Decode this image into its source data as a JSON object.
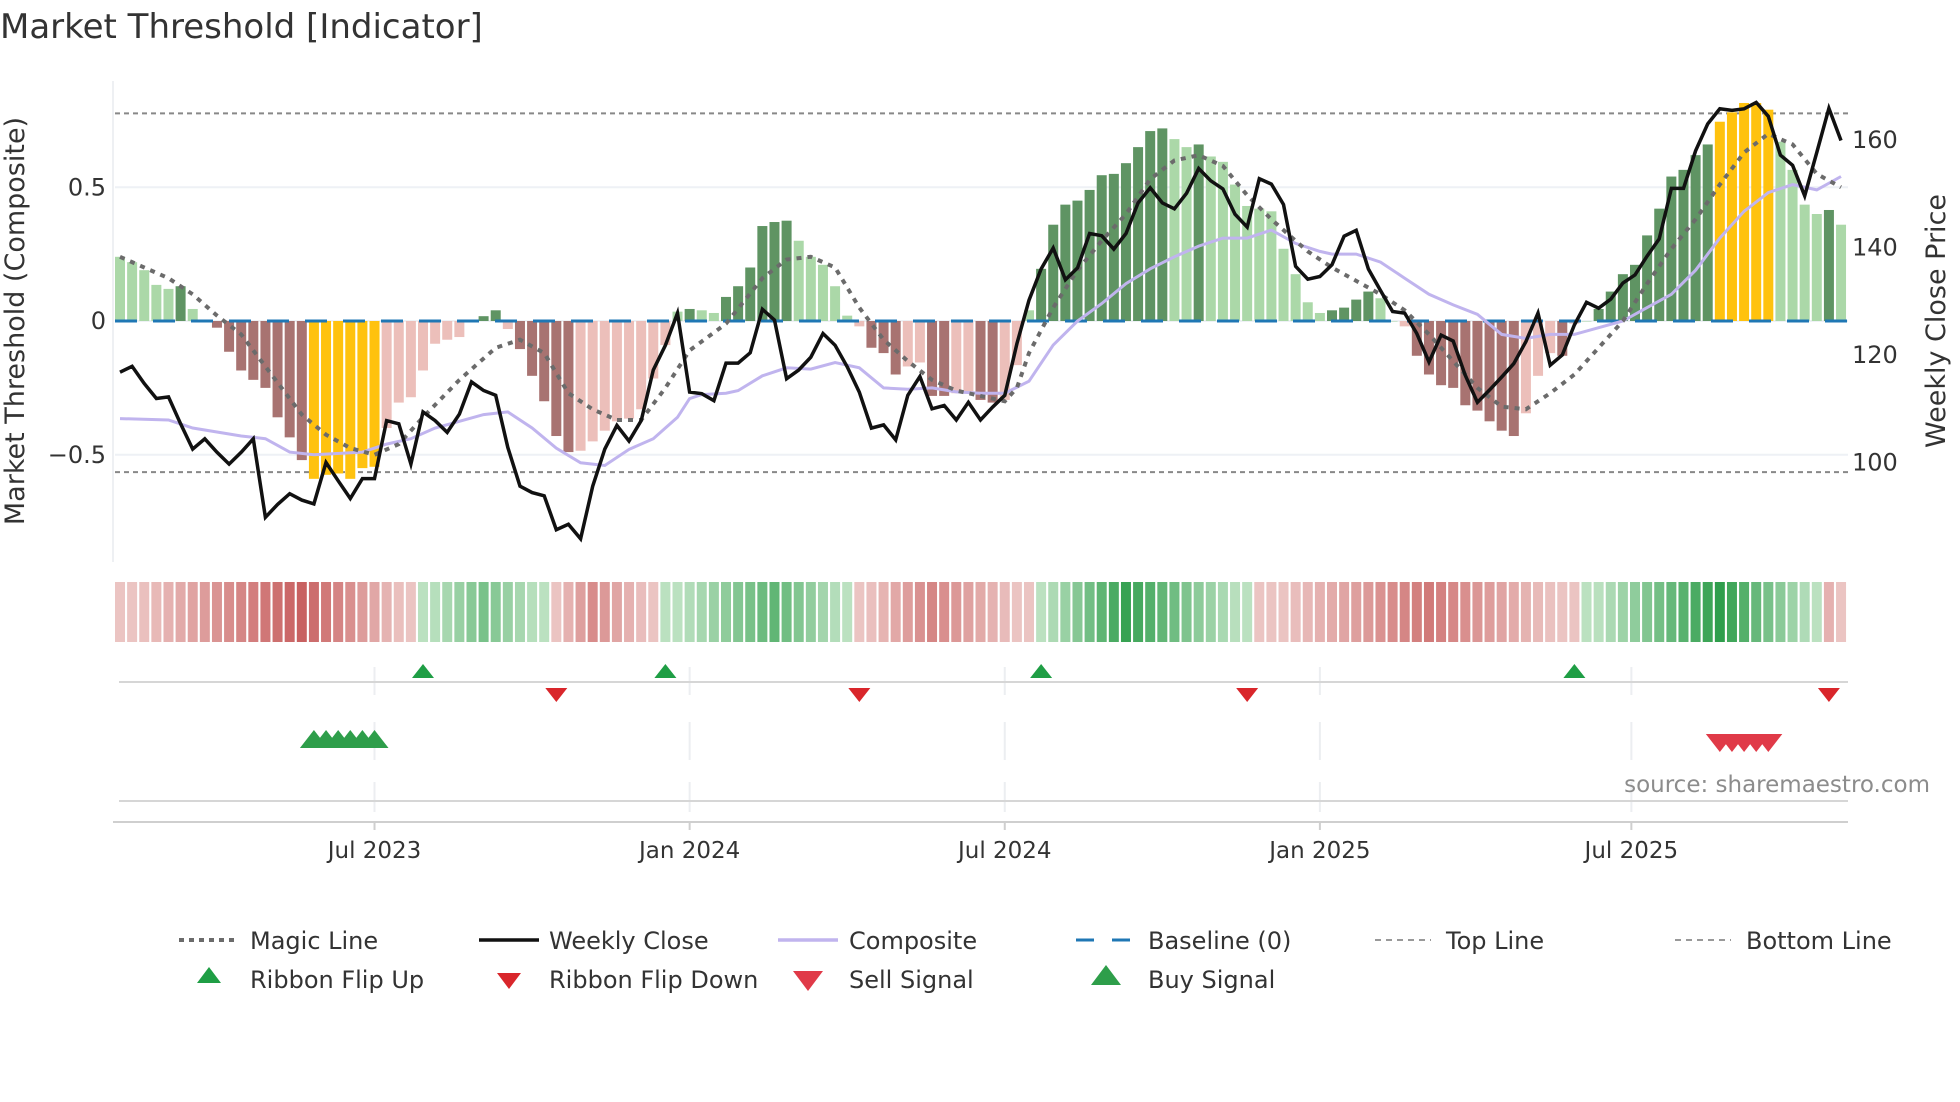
{
  "title": "Market Threshold [Indicator]",
  "source": "source: sharemaestro.com",
  "colors": {
    "dark_green": "#5f9463",
    "light_green": "#abd8a8",
    "dark_red": "#a87371",
    "light_red": "#ecbfba",
    "yellow": "#ffc20e",
    "close": "#111111",
    "composite": "#c0b4ee",
    "magic": "#6b6b6b",
    "baseline": "#1f77b4",
    "threshold": "#888888",
    "flip_up": "#1f9e45",
    "flip_down": "#d9262b",
    "buy": "#2e9e4a",
    "sell": "#e03a48",
    "ribbon_green_dark": "#2f9e4c",
    "ribbon_green_light": "#d4edd5",
    "ribbon_red_dark": "#c65b5b",
    "ribbon_red_light": "#f2d6d4"
  },
  "chart_data": {
    "type": "bar+line",
    "title": "Market Threshold [Indicator]",
    "ylabel_left": "Market Threshold (Composite)",
    "ylabel_right": "Weekly Close Price",
    "ylim_left": [
      -0.9,
      0.92
    ],
    "ylim_right": [
      80,
      180
    ],
    "yticks_left": [
      {
        "v": 0.5,
        "label": "0.5"
      },
      {
        "v": 0,
        "label": "0"
      },
      {
        "v": -0.5,
        "label": "−0.5"
      }
    ],
    "yticks_right": [
      {
        "v": 100,
        "label": "100"
      },
      {
        "v": 120,
        "label": "120"
      },
      {
        "v": 140,
        "label": "140"
      },
      {
        "v": 160,
        "label": "160"
      }
    ],
    "xticks": [
      {
        "week": 21,
        "label": "Jul 2023"
      },
      {
        "week": 47,
        "label": "Jan 2024"
      },
      {
        "week": 73,
        "label": "Jul 2024"
      },
      {
        "week": 99,
        "label": "Jan 2025"
      },
      {
        "week": 124.7,
        "label": "Jul 2025"
      }
    ],
    "top_line": 0.776,
    "bottom_line": -0.565,
    "baseline": 0,
    "composite_bars": [
      0.24,
      0.22,
      0.19,
      0.135,
      0.12,
      0.13,
      0.045,
      0,
      -0.025,
      -0.115,
      -0.185,
      -0.22,
      -0.25,
      -0.36,
      -0.435,
      -0.52,
      -0.59,
      -0.575,
      -0.57,
      -0.59,
      -0.55,
      -0.545,
      -0.4,
      -0.305,
      -0.285,
      -0.185,
      -0.085,
      -0.07,
      -0.06,
      0,
      0.018,
      0.04,
      -0.03,
      -0.105,
      -0.205,
      -0.3,
      -0.43,
      -0.49,
      -0.485,
      -0.45,
      -0.41,
      -0.375,
      -0.365,
      -0.33,
      -0.215,
      -0.09,
      0.035,
      0.045,
      0.04,
      0.03,
      0.09,
      0.13,
      0.2,
      0.355,
      0.37,
      0.375,
      0.3,
      0.24,
      0.21,
      0.13,
      0.02,
      -0.02,
      -0.1,
      -0.12,
      -0.2,
      -0.17,
      -0.155,
      -0.28,
      -0.28,
      -0.27,
      -0.27,
      -0.295,
      -0.305,
      -0.295,
      -0.165,
      0.04,
      0.195,
      0.36,
      0.435,
      0.45,
      0.49,
      0.545,
      0.55,
      0.59,
      0.65,
      0.71,
      0.72,
      0.68,
      0.65,
      0.66,
      0.615,
      0.595,
      0.51,
      0.43,
      0.42,
      0.41,
      0.27,
      0.175,
      0.07,
      0.03,
      0.04,
      0.05,
      0.08,
      0.11,
      0.085,
      0,
      -0.02,
      -0.13,
      -0.2,
      -0.24,
      -0.25,
      -0.315,
      -0.335,
      -0.375,
      -0.41,
      -0.43,
      -0.345,
      -0.205,
      -0.12,
      -0.13,
      -0.01,
      0,
      0.045,
      0.11,
      0.175,
      0.21,
      0.32,
      0.42,
      0.54,
      0.565,
      0.62,
      0.66,
      0.745,
      0.78,
      0.815,
      0.815,
      0.79,
      0.67,
      0.565,
      0.435,
      0.4,
      0.415,
      0.36
    ],
    "bar_types": "lg lg lg lg lg dg lg lg dr dr dr dr dr dr dr dr y y y y y y lr lr lr lr lr lr lr lr dg dg lr dr dr dr dr dr lr lr lr lr lr lr lr lr lg dg lg lg dg dg dg dg dg dg lg lg lg lg lg lr dr dr dr lr lr dr dr lr lr dr dr lr lr lg dg dg dg dg dg dg dg dg dg dg dg lg lg dg lg lg lg lg lg lg lg lg lg lg dg dg dg dg lg lg lr dr dr dr dr dr dr dr dr dr lr lr lr dr lr lg dg dg dg dg dg dg dg dg dg dg y y y y y lg lg lg lg dg lg",
    "weekly_close": [
      116.8,
      117.9,
      114.7,
      111.9,
      112.2,
      107.2,
      102.5,
      104.4,
      101.9,
      99.7,
      101.9,
      104.4,
      89.8,
      92.2,
      94.2,
      93,
      92.3,
      100,
      96.6,
      93.3,
      97,
      97,
      107.8,
      107.2,
      99.7,
      109.4,
      107.8,
      105.6,
      109,
      115,
      113.4,
      112.5,
      102.8,
      95.6,
      94.4,
      93.8,
      87.5,
      88.5,
      85.8,
      95.6,
      102.5,
      106.9,
      104,
      107.8,
      117.2,
      121.8,
      127.8,
      113.1,
      112.8,
      111.5,
      118.5,
      118.5,
      120.4,
      128.5,
      126.5,
      115.6,
      117.2,
      119.6,
      124,
      121.8,
      117.8,
      113.1,
      106.4,
      107,
      104.2,
      112.5,
      116,
      110,
      110.6,
      107.9,
      111.2,
      107.9,
      110.3,
      112.5,
      122.1,
      130.2,
      136,
      139.9,
      134,
      136.2,
      142.6,
      142.2,
      139.7,
      142.6,
      148.3,
      151.1,
      148.3,
      147.2,
      150.1,
      154.7,
      152.4,
      150.9,
      146.2,
      143.8,
      152.8,
      151.8,
      148,
      136.5,
      134.1,
      134.6,
      136.8,
      142.1,
      143.2,
      136,
      132,
      128.1,
      127.8,
      124,
      118.7,
      123.7,
      122.6,
      116.2,
      111.2,
      113.5,
      115.9,
      118.4,
      122.5,
      127.8,
      118.1,
      120,
      125.6,
      129.8,
      128.7,
      130.4,
      133.4,
      134.9,
      138.4,
      141.6,
      151,
      151,
      158,
      163,
      165.8,
      165.5,
      165.8,
      167,
      164.4,
      157.2,
      155.3,
      149.6,
      157.7,
      165.9,
      159.9
    ],
    "magic_line": [
      [
        0,
        0.24
      ],
      [
        4,
        0.16
      ],
      [
        6,
        0.1
      ],
      [
        8,
        0.02
      ],
      [
        10,
        -0.05
      ],
      [
        12,
        -0.17
      ],
      [
        15,
        -0.35
      ],
      [
        17,
        -0.425
      ],
      [
        19,
        -0.475
      ],
      [
        21,
        -0.5
      ],
      [
        23,
        -0.46
      ],
      [
        25,
        -0.36
      ],
      [
        28,
        -0.22
      ],
      [
        31,
        -0.1
      ],
      [
        33,
        -0.07
      ],
      [
        35,
        -0.12
      ],
      [
        37,
        -0.27
      ],
      [
        39,
        -0.33
      ],
      [
        41,
        -0.37
      ],
      [
        43,
        -0.37
      ],
      [
        45,
        -0.25
      ],
      [
        47,
        -0.11
      ],
      [
        50,
        -0.01
      ],
      [
        53,
        0.16
      ],
      [
        55,
        0.23
      ],
      [
        57,
        0.24
      ],
      [
        59,
        0.2
      ],
      [
        61,
        0.05
      ],
      [
        63,
        -0.07
      ],
      [
        65,
        -0.15
      ],
      [
        67,
        -0.22
      ],
      [
        69,
        -0.26
      ],
      [
        71,
        -0.28
      ],
      [
        73,
        -0.3
      ],
      [
        74,
        -0.25
      ],
      [
        75,
        -0.12
      ],
      [
        77,
        0.05
      ],
      [
        79,
        0.19
      ],
      [
        81,
        0.3
      ],
      [
        83,
        0.4
      ],
      [
        85,
        0.53
      ],
      [
        87,
        0.6
      ],
      [
        89,
        0.62
      ],
      [
        91,
        0.58
      ],
      [
        93,
        0.47
      ],
      [
        95,
        0.38
      ],
      [
        97,
        0.3
      ],
      [
        98,
        0.26
      ],
      [
        100,
        0.2
      ],
      [
        102,
        0.15
      ],
      [
        104,
        0.1
      ],
      [
        106,
        0.04
      ],
      [
        108,
        -0.05
      ],
      [
        110,
        -0.15
      ],
      [
        112,
        -0.25
      ],
      [
        114,
        -0.32
      ],
      [
        116,
        -0.33
      ],
      [
        118,
        -0.27
      ],
      [
        120,
        -0.2
      ],
      [
        122,
        -0.1
      ],
      [
        124,
        0
      ],
      [
        126,
        0.14
      ],
      [
        128,
        0.27
      ],
      [
        130,
        0.38
      ],
      [
        132,
        0.51
      ],
      [
        134,
        0.63
      ],
      [
        136,
        0.7
      ],
      [
        138,
        0.66
      ],
      [
        140,
        0.55
      ],
      [
        142,
        0.5
      ]
    ],
    "composite_line": [
      [
        0,
        -0.365
      ],
      [
        4,
        -0.37
      ],
      [
        6,
        -0.4
      ],
      [
        10,
        -0.43
      ],
      [
        12,
        -0.44
      ],
      [
        14,
        -0.49
      ],
      [
        16,
        -0.5
      ],
      [
        20,
        -0.49
      ],
      [
        22,
        -0.46
      ],
      [
        24,
        -0.44
      ],
      [
        26,
        -0.4
      ],
      [
        28,
        -0.375
      ],
      [
        30,
        -0.35
      ],
      [
        32,
        -0.34
      ],
      [
        34,
        -0.4
      ],
      [
        36,
        -0.475
      ],
      [
        38,
        -0.53
      ],
      [
        40,
        -0.54
      ],
      [
        42,
        -0.48
      ],
      [
        44,
        -0.44
      ],
      [
        46,
        -0.36
      ],
      [
        47,
        -0.29
      ],
      [
        48,
        -0.275
      ],
      [
        50,
        -0.27
      ],
      [
        51,
        -0.26
      ],
      [
        53,
        -0.205
      ],
      [
        55,
        -0.175
      ],
      [
        57,
        -0.18
      ],
      [
        59,
        -0.155
      ],
      [
        61,
        -0.175
      ],
      [
        63,
        -0.25
      ],
      [
        65,
        -0.255
      ],
      [
        67,
        -0.25
      ],
      [
        69,
        -0.265
      ],
      [
        71,
        -0.27
      ],
      [
        73,
        -0.27
      ],
      [
        75,
        -0.225
      ],
      [
        77,
        -0.09
      ],
      [
        79,
        0
      ],
      [
        81,
        0.065
      ],
      [
        83,
        0.14
      ],
      [
        85,
        0.195
      ],
      [
        87,
        0.24
      ],
      [
        89,
        0.28
      ],
      [
        91,
        0.31
      ],
      [
        93,
        0.31
      ],
      [
        95,
        0.34
      ],
      [
        97,
        0.29
      ],
      [
        99,
        0.26
      ],
      [
        100,
        0.25
      ],
      [
        102,
        0.25
      ],
      [
        104,
        0.22
      ],
      [
        106,
        0.16
      ],
      [
        108,
        0.1
      ],
      [
        110,
        0.06
      ],
      [
        112,
        0.025
      ],
      [
        114,
        -0.05
      ],
      [
        116,
        -0.065
      ],
      [
        118,
        -0.05
      ],
      [
        120,
        -0.05
      ],
      [
        122,
        -0.025
      ],
      [
        124,
        0
      ],
      [
        126,
        0.05
      ],
      [
        128,
        0.1
      ],
      [
        130,
        0.19
      ],
      [
        132,
        0.31
      ],
      [
        134,
        0.41
      ],
      [
        136,
        0.48
      ],
      [
        138,
        0.51
      ],
      [
        140,
        0.49
      ],
      [
        142,
        0.54
      ]
    ],
    "ribbon_segments": [
      {
        "from": 0,
        "to": 24,
        "dir": "down",
        "peak_at": 15,
        "peak": 0.95
      },
      {
        "from": 25,
        "to": 35,
        "dir": "up",
        "peak_at": 30,
        "peak": 0.55
      },
      {
        "from": 36,
        "to": 44,
        "dir": "down",
        "peak_at": 39,
        "peak": 0.6
      },
      {
        "from": 45,
        "to": 60,
        "dir": "up",
        "peak_at": 54,
        "peak": 0.7
      },
      {
        "from": 61,
        "to": 75,
        "dir": "down",
        "peak_at": 67,
        "peak": 0.65
      },
      {
        "from": 76,
        "to": 93,
        "dir": "up",
        "peak_at": 83,
        "peak": 0.95
      },
      {
        "from": 94,
        "to": 120,
        "dir": "down",
        "peak_at": 108,
        "peak": 0.75
      },
      {
        "from": 121,
        "to": 140,
        "dir": "up",
        "peak_at": 132,
        "peak": 1.0
      },
      {
        "from": 141,
        "to": 142,
        "dir": "down",
        "peak_at": 141,
        "peak": 0.3
      }
    ],
    "ribbon_flip_up": [
      25,
      45,
      76,
      120
    ],
    "ribbon_flip_down": [
      36,
      61,
      93,
      141
    ],
    "buy_signals": [
      16,
      17,
      18,
      19,
      20,
      21
    ],
    "sell_signals": [
      132,
      133,
      134,
      135,
      136
    ],
    "legend": [
      {
        "label": "Magic Line",
        "kind": "dotted"
      },
      {
        "label": "Weekly Close",
        "kind": "solid-black"
      },
      {
        "label": "Composite",
        "kind": "solid-lavender"
      },
      {
        "label": "Baseline (0)",
        "kind": "dash-blue"
      },
      {
        "label": "Top Line",
        "kind": "thin-dash"
      },
      {
        "label": "Bottom Line",
        "kind": "thin-dash"
      },
      {
        "label": "Ribbon Flip Up",
        "kind": "tri-up"
      },
      {
        "label": "Ribbon Flip Down",
        "kind": "tri-down"
      },
      {
        "label": "Sell Signal",
        "kind": "tri-down-big"
      },
      {
        "label": "Buy Signal",
        "kind": "tri-up-big"
      }
    ],
    "legend_placement": "bottom"
  }
}
